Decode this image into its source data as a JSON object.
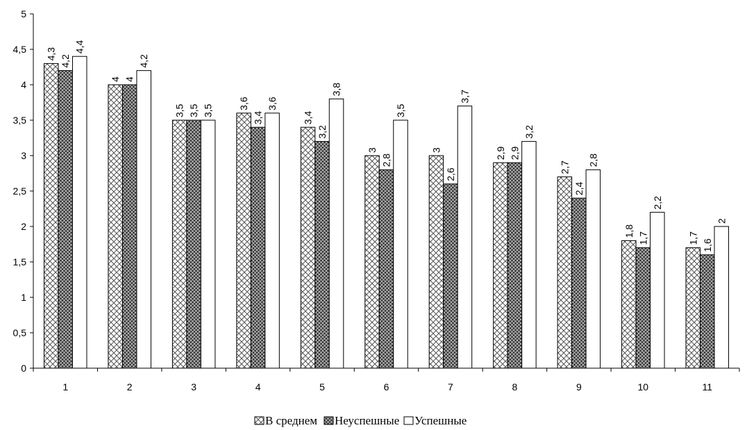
{
  "chart_data": {
    "type": "bar",
    "categories": [
      "1",
      "2",
      "3",
      "4",
      "5",
      "6",
      "7",
      "8",
      "9",
      "10",
      "11"
    ],
    "series": [
      {
        "name": "В среднем",
        "values": [
          4.3,
          4,
          3.5,
          3.6,
          3.4,
          3,
          3,
          2.9,
          2.7,
          1.8,
          1.7
        ],
        "labels": [
          "4,3",
          "4",
          "3,5",
          "3,6",
          "3,4",
          "3",
          "3",
          "2,9",
          "2,7",
          "1,8",
          "1,7"
        ],
        "pattern": "light-crosshatch"
      },
      {
        "name": "Неуспешные",
        "values": [
          4.2,
          4,
          3.5,
          3.4,
          3.2,
          2.8,
          2.6,
          2.9,
          2.4,
          1.7,
          1.6
        ],
        "labels": [
          "4,2",
          "4",
          "3,5",
          "3,4",
          "3,2",
          "2,8",
          "2,6",
          "2,9",
          "2,4",
          "1,7",
          "1,6"
        ],
        "pattern": "dark-crosshatch"
      },
      {
        "name": "Успешные",
        "values": [
          4.4,
          4.2,
          3.5,
          3.6,
          3.8,
          3.5,
          3.7,
          3.2,
          2.8,
          2.2,
          2
        ],
        "labels": [
          "4,4",
          "4,2",
          "3,5",
          "3,6",
          "3,8",
          "3,5",
          "3,7",
          "3,2",
          "2,8",
          "2,2",
          "2"
        ],
        "pattern": "white"
      }
    ],
    "ylim": [
      0,
      5
    ],
    "yticks": [
      "0",
      "0,5",
      "1",
      "1,5",
      "2",
      "2,5",
      "3",
      "3,5",
      "4",
      "4,5",
      "5"
    ],
    "legend_position": "bottom",
    "grid": false,
    "title": "",
    "xlabel": "",
    "ylabel": ""
  }
}
